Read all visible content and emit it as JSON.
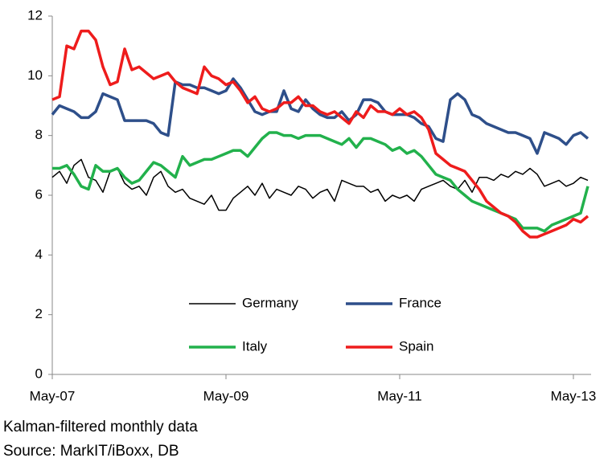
{
  "chart_data": {
    "type": "line",
    "categories": [
      "May-07",
      null,
      null,
      null,
      null,
      null,
      null,
      null,
      null,
      null,
      null,
      null,
      null,
      null,
      null,
      null,
      null,
      null,
      null,
      null,
      null,
      null,
      null,
      null,
      "May-09",
      null,
      null,
      null,
      null,
      null,
      null,
      null,
      null,
      null,
      null,
      null,
      null,
      null,
      null,
      null,
      null,
      null,
      null,
      null,
      null,
      null,
      null,
      null,
      "May-11",
      null,
      null,
      null,
      null,
      null,
      null,
      null,
      null,
      null,
      null,
      null,
      null,
      null,
      null,
      null,
      null,
      null,
      null,
      null,
      null,
      null,
      null,
      null,
      "May-13",
      null,
      null
    ],
    "series": [
      {
        "name": "Germany",
        "color": "#000000",
        "width": 1.5,
        "values": [
          6.6,
          6.8,
          6.4,
          7.0,
          7.2,
          6.6,
          6.5,
          6.1,
          6.8,
          6.9,
          6.4,
          6.2,
          6.3,
          6.0,
          6.6,
          6.8,
          6.3,
          6.1,
          6.2,
          5.9,
          5.8,
          5.7,
          6.0,
          5.5,
          5.5,
          5.9,
          6.1,
          6.3,
          6.0,
          6.4,
          5.9,
          6.2,
          6.1,
          6.0,
          6.3,
          6.2,
          5.9,
          6.1,
          6.2,
          5.8,
          6.5,
          6.4,
          6.3,
          6.3,
          6.1,
          6.2,
          5.8,
          6.0,
          5.9,
          6.0,
          5.8,
          6.2,
          6.3,
          6.4,
          6.5,
          6.3,
          6.2,
          6.5,
          6.1,
          6.6,
          6.6,
          6.5,
          6.7,
          6.6,
          6.8,
          6.7,
          6.9,
          6.7,
          6.3,
          6.4,
          6.5,
          6.3,
          6.4,
          6.6,
          6.5
        ]
      },
      {
        "name": "France",
        "color": "#2e4f8a",
        "width": 3.5,
        "values": [
          8.7,
          9.0,
          8.9,
          8.8,
          8.6,
          8.6,
          8.8,
          9.4,
          9.3,
          9.2,
          8.5,
          8.5,
          8.5,
          8.5,
          8.4,
          8.1,
          8.0,
          9.8,
          9.7,
          9.7,
          9.6,
          9.6,
          9.5,
          9.4,
          9.5,
          9.9,
          9.6,
          9.2,
          8.8,
          8.7,
          8.8,
          8.8,
          9.5,
          8.9,
          8.8,
          9.2,
          8.9,
          8.7,
          8.6,
          8.6,
          8.8,
          8.5,
          8.7,
          9.2,
          9.2,
          9.1,
          8.8,
          8.7,
          8.7,
          8.7,
          8.6,
          8.4,
          8.3,
          7.9,
          7.8,
          9.2,
          9.4,
          9.2,
          8.7,
          8.6,
          8.4,
          8.3,
          8.2,
          8.1,
          8.1,
          8.0,
          7.9,
          7.4,
          8.1,
          8.0,
          7.9,
          7.7,
          8.0,
          8.1,
          7.9
        ]
      },
      {
        "name": "Italy",
        "color": "#22b14c",
        "width": 3.5,
        "values": [
          6.9,
          6.9,
          7.0,
          6.7,
          6.3,
          6.2,
          7.0,
          6.8,
          6.8,
          6.9,
          6.6,
          6.4,
          6.5,
          6.8,
          7.1,
          7.0,
          6.8,
          6.6,
          7.3,
          7.0,
          7.1,
          7.2,
          7.2,
          7.3,
          7.4,
          7.5,
          7.5,
          7.3,
          7.6,
          7.9,
          8.1,
          8.1,
          8.0,
          8.0,
          7.9,
          8.0,
          8.0,
          8.0,
          7.9,
          7.8,
          7.7,
          7.9,
          7.6,
          7.9,
          7.9,
          7.8,
          7.7,
          7.5,
          7.6,
          7.4,
          7.5,
          7.3,
          7.0,
          6.7,
          6.6,
          6.5,
          6.2,
          6.0,
          5.8,
          5.7,
          5.6,
          5.5,
          5.4,
          5.3,
          5.2,
          4.9,
          4.9,
          4.9,
          4.8,
          5.0,
          5.1,
          5.2,
          5.3,
          5.4,
          6.3
        ]
      },
      {
        "name": "Spain",
        "color": "#ee1c1c",
        "width": 3.5,
        "values": [
          9.2,
          9.3,
          11.0,
          10.9,
          11.5,
          11.5,
          11.2,
          10.3,
          9.7,
          9.8,
          10.9,
          10.2,
          10.3,
          10.1,
          9.9,
          10.0,
          10.1,
          9.8,
          9.6,
          9.5,
          9.4,
          10.3,
          10.0,
          9.9,
          9.7,
          9.8,
          9.5,
          9.1,
          9.3,
          8.9,
          8.8,
          8.9,
          9.1,
          9.1,
          9.3,
          9.0,
          9.0,
          8.8,
          8.7,
          8.8,
          8.6,
          8.4,
          8.8,
          8.6,
          9.0,
          8.8,
          8.8,
          8.7,
          8.9,
          8.7,
          8.8,
          8.6,
          8.2,
          7.4,
          7.2,
          7.0,
          6.9,
          6.8,
          6.5,
          6.2,
          5.8,
          5.6,
          5.4,
          5.3,
          5.1,
          4.8,
          4.6,
          4.6,
          4.7,
          4.8,
          4.9,
          5.0,
          5.2,
          5.1,
          5.3
        ]
      }
    ],
    "ylim": [
      0,
      12
    ],
    "yticks": [
      0,
      2,
      4,
      6,
      8,
      10,
      12
    ],
    "grid": false,
    "legend": "bottom",
    "notes": [
      "Kalman-filtered monthly data",
      "Source: MarkIT/iBoxx, DB"
    ]
  }
}
